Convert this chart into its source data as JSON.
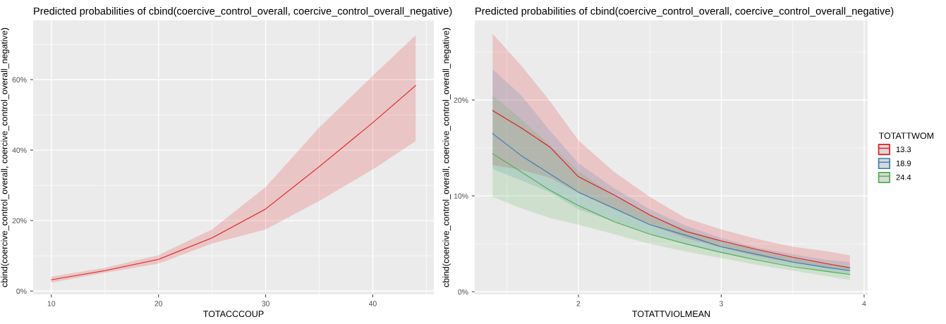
{
  "chart_data": [
    {
      "type": "line",
      "title": "Predicted probabilities of cbind(coercive_control_overall, coercive_control_overall_negative)",
      "xlabel": "TOTACCCOUP",
      "ylabel": "cbind(coercive_control_overall, coercive_control_overall_negative)",
      "x": [
        10,
        15,
        20,
        25,
        30,
        35,
        40,
        44
      ],
      "series": [
        {
          "color": "#e41a1c",
          "values": [
            3.2,
            5.8,
            9.0,
            15.1,
            23.3,
            35.3,
            47.8,
            58.3
          ],
          "lower": [
            2.4,
            5.2,
            7.8,
            13.5,
            17.5,
            25.6,
            34.5,
            42.5
          ],
          "upper": [
            4.1,
            6.6,
            10.2,
            17.5,
            29.5,
            46.4,
            61.1,
            72.6
          ]
        }
      ],
      "xlim": [
        8.3,
        45.7
      ],
      "xticks": [
        10,
        20,
        30,
        40
      ],
      "ylim": [
        -0.96,
        76.8
      ],
      "yticks": [
        {
          "value": 0,
          "label": "0%"
        },
        {
          "value": 20,
          "label": "20%"
        },
        {
          "value": 40,
          "label": "40%"
        },
        {
          "value": 60,
          "label": "60%"
        }
      ],
      "grid": true,
      "legend": false
    },
    {
      "type": "line",
      "title": "Predicted probabilities of cbind(coercive_control_overall, coercive_control_overall_negative)",
      "xlabel": "TOTATTVIOLMEAN",
      "ylabel": "cbind(coercive_control_overall, coercive_control_overall_negative)",
      "legend_title": "TOTATTWOM",
      "x": [
        1.4,
        1.6,
        1.8,
        2.0,
        2.25,
        2.5,
        2.75,
        3.0,
        3.25,
        3.5,
        3.75,
        3.9
      ],
      "series": [
        {
          "name": "13.3",
          "color": "#e41a1c",
          "values": [
            18.9,
            17.1,
            15.1,
            12.0,
            10.1,
            8.0,
            6.3,
            5.3,
            4.4,
            3.6,
            2.9,
            2.5
          ],
          "lower": [
            13.2,
            12.7,
            11.9,
            10.3,
            8.6,
            7.0,
            5.6,
            4.6,
            3.7,
            3.0,
            2.5,
            2.2
          ],
          "upper": [
            26.9,
            23.6,
            19.9,
            15.8,
            12.5,
            9.9,
            7.7,
            6.5,
            5.5,
            4.7,
            4.2,
            3.8
          ]
        },
        {
          "name": "18.9",
          "color": "#377eb8",
          "values": [
            16.5,
            14.2,
            12.3,
            10.4,
            8.7,
            7.0,
            5.9,
            4.7,
            3.9,
            3.1,
            2.5,
            2.2
          ],
          "lower": [
            12.8,
            11.6,
            10.4,
            8.6,
            7.3,
            6.0,
            5.0,
            4.1,
            3.3,
            2.7,
            2.1,
            1.8
          ],
          "upper": [
            23.2,
            20.5,
            16.8,
            13.4,
            10.8,
            8.6,
            6.9,
            5.6,
            4.6,
            3.9,
            3.3,
            3.1
          ]
        },
        {
          "name": "24.4",
          "color": "#4daf4a",
          "values": [
            14.4,
            12.5,
            10.6,
            9.0,
            7.3,
            6.0,
            5.0,
            4.1,
            3.3,
            2.6,
            2.1,
            1.8
          ],
          "lower": [
            9.9,
            8.7,
            7.7,
            7.0,
            6.0,
            5.0,
            4.2,
            3.5,
            2.8,
            2.2,
            1.6,
            1.2
          ],
          "upper": [
            20.5,
            18.0,
            15.3,
            12.6,
            10.0,
            8.0,
            6.5,
            5.3,
            4.3,
            3.5,
            2.9,
            2.6
          ]
        }
      ],
      "xlim": [
        1.275,
        4.025
      ],
      "xticks": [
        2,
        3,
        4
      ],
      "ylim": [
        -0.28,
        28.3
      ],
      "yticks": [
        {
          "value": 0,
          "label": "0%"
        },
        {
          "value": 10,
          "label": "10%"
        },
        {
          "value": 20,
          "label": "20%"
        }
      ],
      "grid": true,
      "legend": "right"
    }
  ]
}
